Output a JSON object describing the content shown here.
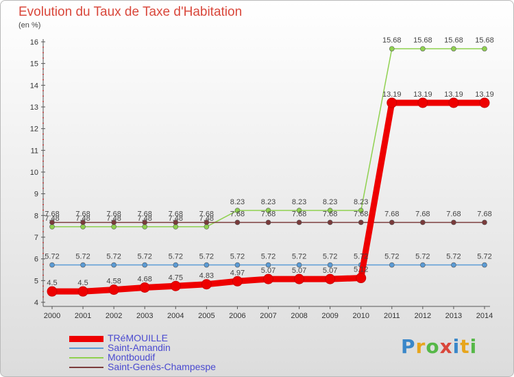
{
  "header": {
    "title": "Evolution du Taux de Taxe d'Habitation",
    "unit": "(en %)"
  },
  "logo": {
    "text": "Proxiti"
  },
  "chart_data": {
    "type": "line",
    "x": [
      2000,
      2001,
      2002,
      2003,
      2004,
      2005,
      2006,
      2007,
      2008,
      2009,
      2010,
      2011,
      2012,
      2013,
      2014
    ],
    "ylim": [
      4,
      16
    ],
    "yticks": [
      4,
      5,
      6,
      7,
      8,
      9,
      10,
      11,
      12,
      13,
      14,
      15,
      16
    ],
    "legend_position": "bottom-left",
    "series": [
      {
        "name": "TRéMOUILLE",
        "color": "#ee0000",
        "values": [
          4.5,
          4.5,
          4.58,
          4.68,
          4.75,
          4.83,
          4.97,
          5.07,
          5.07,
          5.07,
          5.12,
          13.19,
          13.19,
          13.19,
          13.19
        ],
        "labels": [
          "4.5",
          "4.5",
          "4.58",
          "4.68",
          "4.75",
          "4.83",
          "4.97",
          "5.07",
          "5.07",
          "5.07",
          "5.12",
          "13.19",
          "13.19",
          "13.19",
          "13.19"
        ]
      },
      {
        "name": "Saint-Amandin",
        "color": "#5b9bd5",
        "values": [
          5.72,
          5.72,
          5.72,
          5.72,
          5.72,
          5.72,
          5.72,
          5.72,
          5.72,
          5.72,
          5.72,
          5.72,
          5.72,
          5.72,
          5.72
        ],
        "labels": [
          "5.72",
          "5.72",
          "5.72",
          "5.72",
          "5.72",
          "5.72",
          "5.72",
          "5.72",
          "5.72",
          "5.72",
          "5.72",
          "5.72",
          "5.72",
          "5.72",
          "5.72"
        ]
      },
      {
        "name": "Montboudif",
        "color": "#8fd14f",
        "values": [
          7.48,
          7.48,
          7.48,
          7.48,
          7.48,
          7.48,
          8.23,
          8.23,
          8.23,
          8.23,
          8.23,
          15.68,
          15.68,
          15.68,
          15.68
        ],
        "labels": [
          "7.48",
          "7.48",
          "7.48",
          "7.48",
          "7.48",
          "7.48",
          "8.23",
          "8.23",
          "8.23",
          "8.23",
          "8.23",
          "15.68",
          "15.68",
          "15.68",
          "15.68"
        ]
      },
      {
        "name": "Saint-Genès-Champespe",
        "color": "#7a3b3b",
        "values": [
          7.68,
          7.68,
          7.68,
          7.68,
          7.68,
          7.68,
          7.68,
          7.68,
          7.68,
          7.68,
          7.68,
          7.68,
          7.68,
          7.68,
          7.68
        ],
        "labels": [
          "7.68",
          "7.68",
          "7.68",
          "7.68",
          "7.68",
          "7.68",
          "7.68",
          "7.68",
          "7.68",
          "7.68",
          "7.68",
          "7.68",
          "7.68",
          "7.68",
          "7.68"
        ]
      }
    ]
  }
}
